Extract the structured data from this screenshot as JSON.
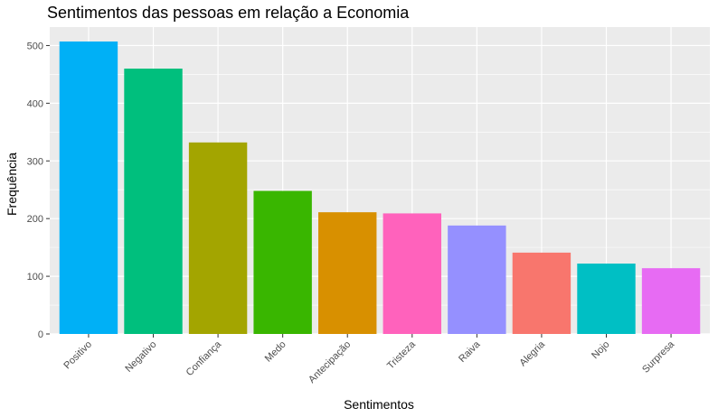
{
  "chart_data": {
    "type": "bar",
    "title": "Sentimentos das pessoas em relação a Economia",
    "xlabel": "Sentimentos",
    "ylabel": "Frequência",
    "categories": [
      "Positivo",
      "Negativo",
      "Confiança",
      "Medo",
      "Antecipação",
      "Tristeza",
      "Raiva",
      "Alegria",
      "Nojo",
      "Surpresa"
    ],
    "values": [
      507,
      460,
      332,
      248,
      211,
      209,
      188,
      141,
      122,
      114
    ],
    "colors": [
      "#00B0F6",
      "#00BF7D",
      "#A3A500",
      "#39B600",
      "#D89000",
      "#FF62BC",
      "#9590FF",
      "#F8766D",
      "#00BFC4",
      "#E76BF3"
    ],
    "ylim": [
      0,
      532
    ],
    "yticks": [
      0,
      100,
      200,
      300,
      400,
      500
    ],
    "grid": true,
    "legend": "none",
    "background": "#EBEBEB"
  }
}
